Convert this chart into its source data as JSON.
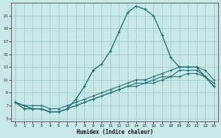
{
  "xlabel": "Humidex (Indice chaleur)",
  "bg_color": "#c8e8e8",
  "grid_color": "#a0c8c8",
  "line_color": "#1a6e6e",
  "xlim": [
    -0.5,
    23.5
  ],
  "ylim": [
    4.5,
    23.0
  ],
  "yticks": [
    5,
    7,
    9,
    11,
    13,
    15,
    17,
    19,
    21
  ],
  "xticks": [
    0,
    1,
    2,
    3,
    4,
    5,
    6,
    7,
    8,
    9,
    10,
    11,
    12,
    13,
    14,
    15,
    16,
    17,
    18,
    19,
    20,
    21,
    22,
    23
  ],
  "main_x": [
    0,
    1,
    2,
    3,
    4,
    5,
    6,
    7,
    8,
    9,
    10,
    11,
    12,
    13,
    14,
    15,
    16,
    17,
    18,
    19,
    20,
    21,
    22,
    23
  ],
  "main_y": [
    7.5,
    7.0,
    6.5,
    6.5,
    6.0,
    6.0,
    6.5,
    8.0,
    10.0,
    12.5,
    13.5,
    15.5,
    18.5,
    21.5,
    22.5,
    22.0,
    21.0,
    18.0,
    14.5,
    13.0,
    13.0,
    13.0,
    11.5,
    10.0
  ],
  "ref1_x": [
    0,
    1,
    2,
    3,
    4,
    5,
    6,
    7,
    8,
    9,
    10,
    11,
    12,
    13,
    14,
    15,
    16,
    17,
    18,
    19,
    20,
    21,
    22,
    23
  ],
  "ref1_y": [
    7.5,
    6.5,
    6.5,
    6.5,
    6.0,
    6.0,
    6.5,
    7.0,
    7.5,
    8.0,
    8.5,
    9.0,
    9.5,
    10.0,
    10.0,
    10.5,
    10.5,
    11.0,
    11.5,
    11.5,
    12.0,
    12.0,
    11.5,
    10.0
  ],
  "ref2_x": [
    0,
    1,
    2,
    3,
    4,
    5,
    6,
    7,
    8,
    9,
    10,
    11,
    12,
    13,
    14,
    15,
    16,
    17,
    18,
    19,
    20,
    21,
    22,
    23
  ],
  "ref2_y": [
    7.5,
    6.5,
    6.5,
    6.5,
    6.0,
    6.0,
    6.5,
    7.0,
    7.5,
    8.0,
    8.5,
    9.0,
    9.5,
    10.0,
    10.5,
    10.5,
    11.0,
    11.5,
    11.5,
    12.5,
    12.5,
    12.5,
    11.5,
    10.5
  ],
  "ref3_x": [
    0,
    1,
    2,
    3,
    4,
    5,
    6,
    7,
    8,
    9,
    10,
    11,
    12,
    13,
    14,
    15,
    16,
    17,
    18,
    19,
    20,
    21,
    22,
    23
  ],
  "ref3_y": [
    7.5,
    7.0,
    7.0,
    7.0,
    6.5,
    6.5,
    7.0,
    7.5,
    8.0,
    8.5,
    9.0,
    9.5,
    10.0,
    10.5,
    11.0,
    11.0,
    11.5,
    12.0,
    12.5,
    13.0,
    13.0,
    13.0,
    12.5,
    11.0
  ]
}
